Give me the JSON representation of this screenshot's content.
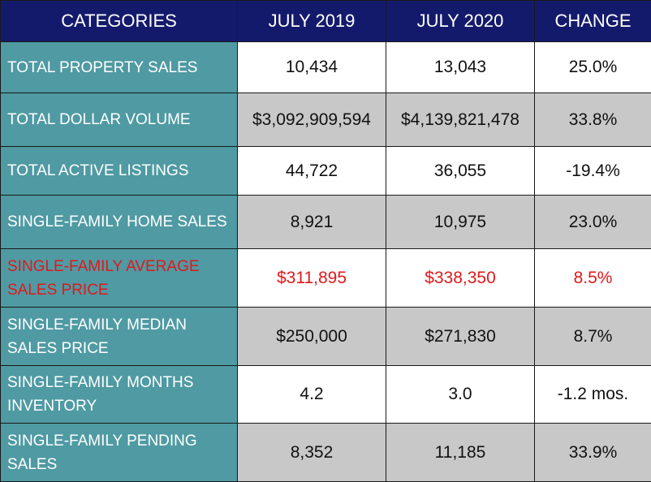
{
  "headers": {
    "categories": "CATEGORIES",
    "july_2019": "JULY 2019",
    "july_2020": "JULY 2020",
    "change": "CHANGE"
  },
  "rows": [
    {
      "category": "TOTAL PROPERTY SALES",
      "july_2019": "10,434",
      "july_2020": "13,043",
      "change": "25.0%",
      "highlight": false
    },
    {
      "category": "TOTAL DOLLAR VOLUME",
      "july_2019": "$3,092,909,594",
      "july_2020": "$4,139,821,478",
      "change": "33.8%",
      "highlight": false
    },
    {
      "category": "TOTAL ACTIVE LISTINGS",
      "july_2019": "44,722",
      "july_2020": "36,055",
      "change": "-19.4%",
      "highlight": false
    },
    {
      "category": "SINGLE-FAMILY HOME SALES",
      "july_2019": "8,921",
      "july_2020": "10,975",
      "change": "23.0%",
      "highlight": false
    },
    {
      "category": "SINGLE-FAMILY AVERAGE SALES PRICE",
      "july_2019": "$311,895",
      "july_2020": "$338,350",
      "change": "8.5%",
      "highlight": true
    },
    {
      "category": "SINGLE-FAMILY MEDIAN SALES PRICE",
      "july_2019": "$250,000",
      "july_2020": "$271,830",
      "change": "8.7%",
      "highlight": false
    },
    {
      "category": "SINGLE-FAMILY MONTHS INVENTORY",
      "july_2019": "4.2",
      "july_2020": "3.0",
      "change": "-1.2 mos.",
      "highlight": false
    },
    {
      "category": "SINGLE-FAMILY PENDING SALES",
      "july_2019": "8,352",
      "july_2020": "11,185",
      "change": "33.9%",
      "highlight": false
    }
  ],
  "colors": {
    "header_bg": "#141a6b",
    "category_bg": "#4f9aa3",
    "grey_row_bg": "#c8c8c8",
    "highlight_text": "#e0191b"
  }
}
